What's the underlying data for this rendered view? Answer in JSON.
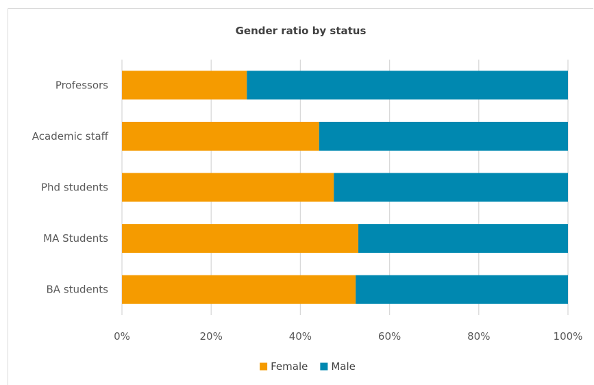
{
  "chart_data": {
    "type": "bar",
    "orientation": "horizontal",
    "stacked": true,
    "percent_stacked": true,
    "title": "Gender ratio by status",
    "xlabel": "",
    "ylabel": "",
    "categories": [
      "Professors",
      "Academic staff",
      "Phd students",
      "MA Students",
      "BA students"
    ],
    "series": [
      {
        "name": "Female",
        "color": "#f59b00",
        "values": [
          28,
          44.2,
          47.5,
          53,
          52.4
        ]
      },
      {
        "name": "Male",
        "color": "#0088b0",
        "values": [
          72,
          55.8,
          52.5,
          47,
          47.6
        ]
      }
    ],
    "xlim": [
      0,
      100
    ],
    "x_ticks": [
      "0%",
      "20%",
      "40%",
      "60%",
      "80%",
      "100%"
    ],
    "grid": true,
    "legend_position": "bottom"
  }
}
